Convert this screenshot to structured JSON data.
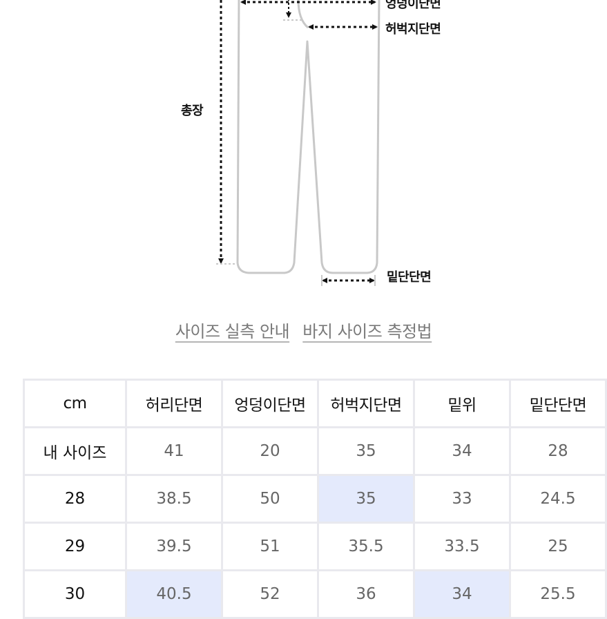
{
  "diagram": {
    "labels": {
      "total_length": "총장",
      "hip_width": "엉덩이단면",
      "thigh_width": "허벅지단면",
      "hem_width": "밑단단면"
    },
    "colors": {
      "outline": "#c8c8c8",
      "arrow": "#111111"
    }
  },
  "links": {
    "measure_guide": "사이즈 실측 안내",
    "pants_method": "바지 사이즈 측정법"
  },
  "table": {
    "columns": [
      "cm",
      "허리단면",
      "엉덩이단면",
      "허벅지단면",
      "밑위",
      "밑단단면"
    ],
    "rows": [
      {
        "label": "내 사이즈",
        "values": [
          "41",
          "20",
          "35",
          "34",
          "28"
        ]
      },
      {
        "label": "28",
        "values": [
          "38.5",
          "50",
          "35",
          "33",
          "24.5"
        ]
      },
      {
        "label": "29",
        "values": [
          "39.5",
          "51",
          "35.5",
          "33.5",
          "25"
        ]
      },
      {
        "label": "30",
        "values": [
          "40.5",
          "52",
          "36",
          "34",
          "25.5"
        ]
      }
    ],
    "highlight_color": "#e4eafc"
  }
}
